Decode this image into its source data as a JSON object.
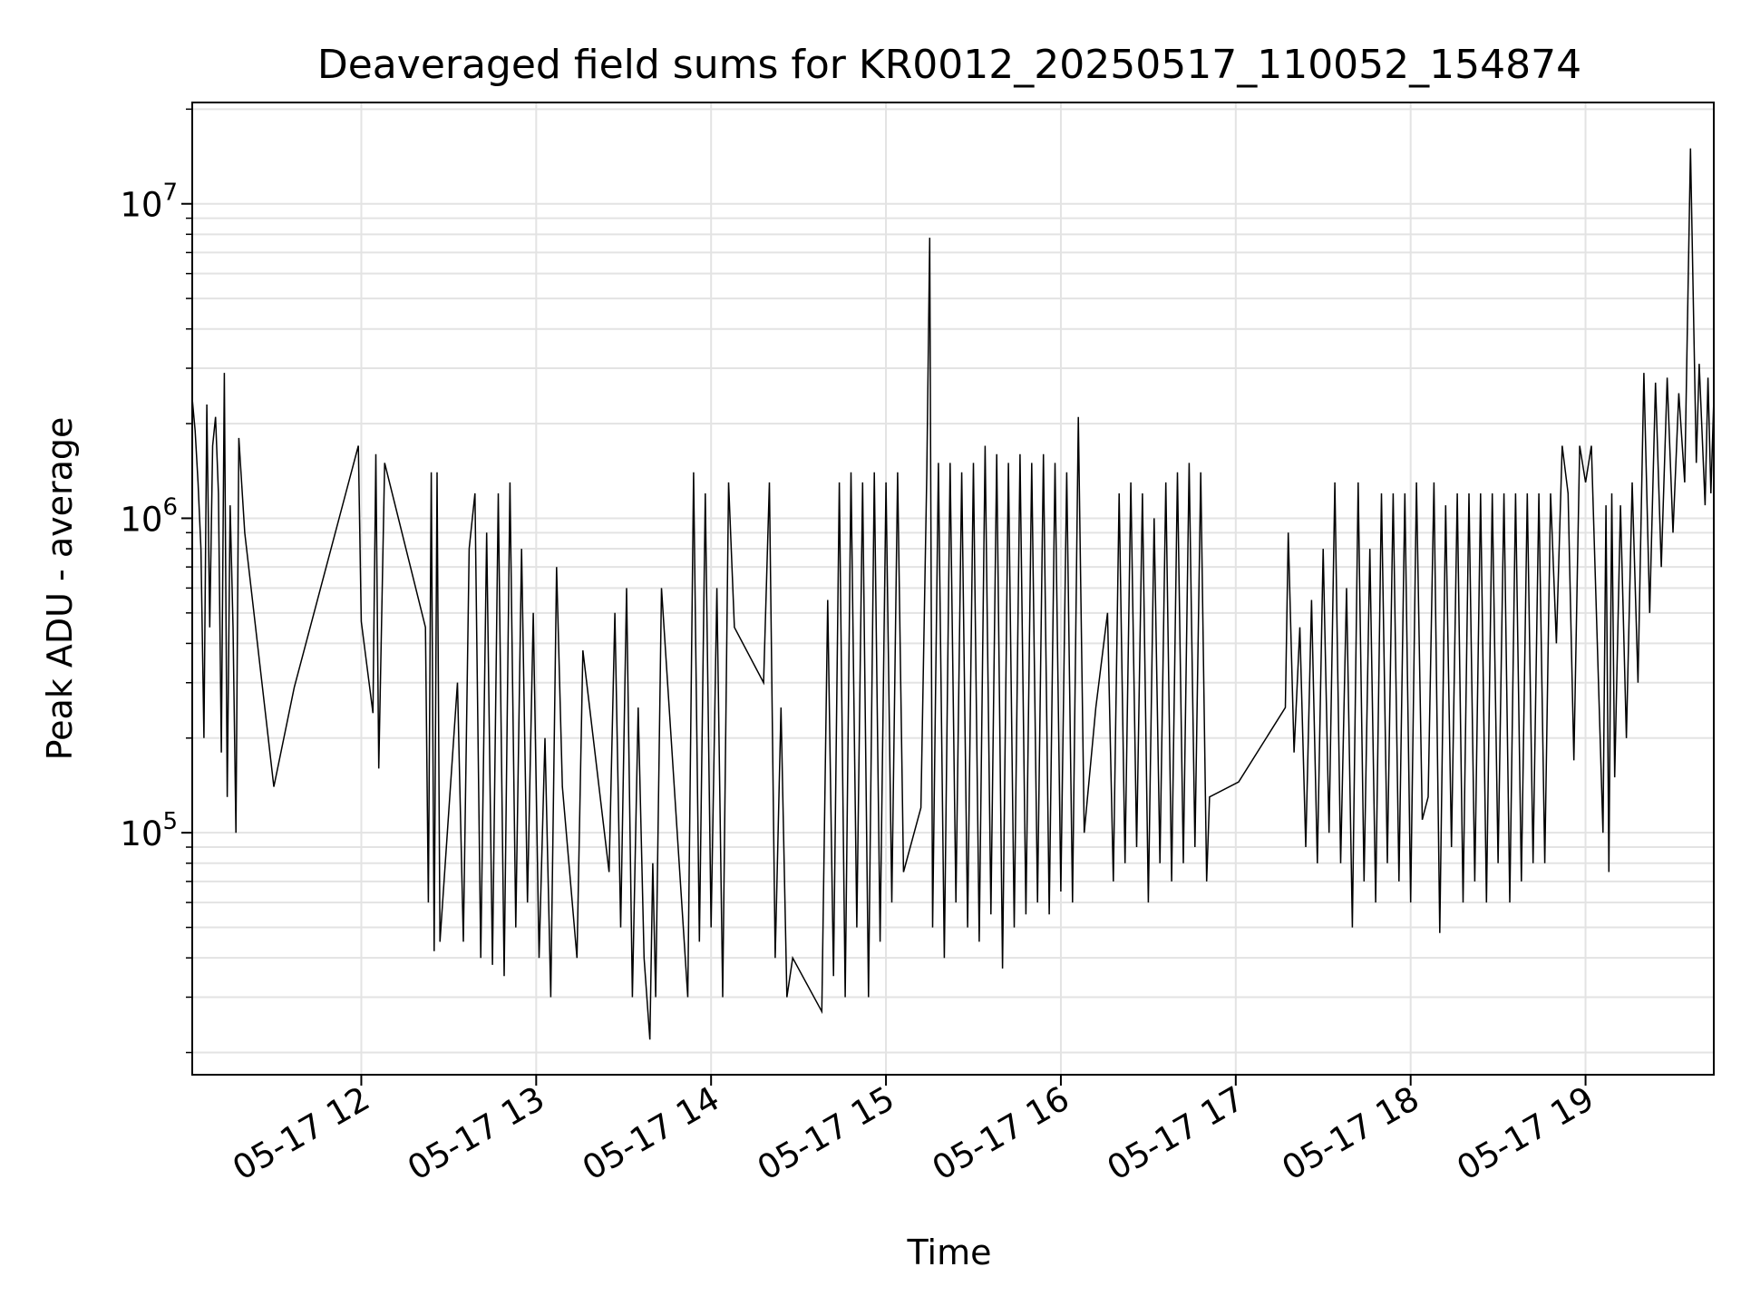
{
  "chart_data": {
    "type": "line",
    "title": "Deaveraged field sums for KR0012_20250517_110052_154874",
    "xlabel": "Time",
    "ylabel": "Peak ADU - average",
    "yscale": "log",
    "ylim": [
      17000,
      21000000
    ],
    "xlim": [
      "2025-05-17 11:02",
      "2025-05-17 19:44"
    ],
    "grid": true,
    "line_color": "#000000",
    "grid_color": "#e3e3e3",
    "x_ticks": [
      {
        "value": "2025-05-17 12:00",
        "label": "05-17 12"
      },
      {
        "value": "2025-05-17 13:00",
        "label": "05-17 13"
      },
      {
        "value": "2025-05-17 14:00",
        "label": "05-17 14"
      },
      {
        "value": "2025-05-17 15:00",
        "label": "05-17 15"
      },
      {
        "value": "2025-05-17 16:00",
        "label": "05-17 16"
      },
      {
        "value": "2025-05-17 17:00",
        "label": "05-17 17"
      },
      {
        "value": "2025-05-17 18:00",
        "label": "05-17 18"
      },
      {
        "value": "2025-05-17 19:00",
        "label": "05-17 19"
      }
    ],
    "y_ticks": [
      {
        "value": 100000,
        "base": "10",
        "exp": "5"
      },
      {
        "value": 1000000,
        "base": "10",
        "exp": "6"
      },
      {
        "value": 10000000,
        "base": "10",
        "exp": "7"
      }
    ],
    "series": [
      {
        "points": [
          [
            "2025-05-17 11:02",
            2400000
          ],
          [
            "2025-05-17 11:03",
            1900000
          ],
          [
            "2025-05-17 11:04",
            1300000
          ],
          [
            "2025-05-17 11:05",
            800000
          ],
          [
            "2025-05-17 11:06",
            200000
          ],
          [
            "2025-05-17 11:07",
            2300000
          ],
          [
            "2025-05-17 11:08",
            450000
          ],
          [
            "2025-05-17 11:09",
            1700000
          ],
          [
            "2025-05-17 11:10",
            2100000
          ],
          [
            "2025-05-17 11:11",
            1200000
          ],
          [
            "2025-05-17 11:12",
            180000
          ],
          [
            "2025-05-17 11:13",
            2900000
          ],
          [
            "2025-05-17 11:14",
            130000
          ],
          [
            "2025-05-17 11:15",
            1100000
          ],
          [
            "2025-05-17 11:16",
            450000
          ],
          [
            "2025-05-17 11:17",
            100000
          ],
          [
            "2025-05-17 11:18",
            1800000
          ],
          [
            "2025-05-17 11:20",
            900000
          ],
          [
            "2025-05-17 11:30",
            140000
          ],
          [
            "2025-05-17 11:37",
            290000
          ],
          [
            "2025-05-17 11:59",
            1700000
          ],
          [
            "2025-05-17 12:00",
            470000
          ],
          [
            "2025-05-17 12:04",
            240000
          ],
          [
            "2025-05-17 12:05",
            1600000
          ],
          [
            "2025-05-17 12:06",
            160000
          ],
          [
            "2025-05-17 12:08",
            1500000
          ],
          [
            "2025-05-17 12:22",
            450000
          ],
          [
            "2025-05-17 12:23",
            60000
          ],
          [
            "2025-05-17 12:24",
            1400000
          ],
          [
            "2025-05-17 12:25",
            42000
          ],
          [
            "2025-05-17 12:26",
            1400000
          ],
          [
            "2025-05-17 12:27",
            45000
          ],
          [
            "2025-05-17 12:33",
            300000
          ],
          [
            "2025-05-17 12:35",
            45000
          ],
          [
            "2025-05-17 12:37",
            800000
          ],
          [
            "2025-05-17 12:39",
            1200000
          ],
          [
            "2025-05-17 12:41",
            40000
          ],
          [
            "2025-05-17 12:43",
            900000
          ],
          [
            "2025-05-17 12:45",
            38000
          ],
          [
            "2025-05-17 12:47",
            1200000
          ],
          [
            "2025-05-17 12:49",
            35000
          ],
          [
            "2025-05-17 12:51",
            1300000
          ],
          [
            "2025-05-17 12:53",
            50000
          ],
          [
            "2025-05-17 12:55",
            800000
          ],
          [
            "2025-05-17 12:57",
            60000
          ],
          [
            "2025-05-17 12:59",
            500000
          ],
          [
            "2025-05-17 13:01",
            40000
          ],
          [
            "2025-05-17 13:03",
            200000
          ],
          [
            "2025-05-17 13:05",
            30000
          ],
          [
            "2025-05-17 13:07",
            700000
          ],
          [
            "2025-05-17 13:09",
            140000
          ],
          [
            "2025-05-17 13:14",
            40000
          ],
          [
            "2025-05-17 13:16",
            380000
          ],
          [
            "2025-05-17 13:25",
            75000
          ],
          [
            "2025-05-17 13:27",
            500000
          ],
          [
            "2025-05-17 13:29",
            50000
          ],
          [
            "2025-05-17 13:31",
            600000
          ],
          [
            "2025-05-17 13:33",
            30000
          ],
          [
            "2025-05-17 13:35",
            250000
          ],
          [
            "2025-05-17 13:37",
            40000
          ],
          [
            "2025-05-17 13:39",
            22000
          ],
          [
            "2025-05-17 13:40",
            80000
          ],
          [
            "2025-05-17 13:41",
            30000
          ],
          [
            "2025-05-17 13:43",
            600000
          ],
          [
            "2025-05-17 13:52",
            30000
          ],
          [
            "2025-05-17 13:54",
            1400000
          ],
          [
            "2025-05-17 13:56",
            45000
          ],
          [
            "2025-05-17 13:58",
            1200000
          ],
          [
            "2025-05-17 14:00",
            50000
          ],
          [
            "2025-05-17 14:02",
            600000
          ],
          [
            "2025-05-17 14:04",
            30000
          ],
          [
            "2025-05-17 14:06",
            1300000
          ],
          [
            "2025-05-17 14:08",
            450000
          ],
          [
            "2025-05-17 14:18",
            300000
          ],
          [
            "2025-05-17 14:20",
            1300000
          ],
          [
            "2025-05-17 14:22",
            40000
          ],
          [
            "2025-05-17 14:24",
            250000
          ],
          [
            "2025-05-17 14:26",
            30000
          ],
          [
            "2025-05-17 14:28",
            40000
          ],
          [
            "2025-05-17 14:38",
            27000
          ],
          [
            "2025-05-17 14:40",
            550000
          ],
          [
            "2025-05-17 14:42",
            35000
          ],
          [
            "2025-05-17 14:44",
            1300000
          ],
          [
            "2025-05-17 14:46",
            30000
          ],
          [
            "2025-05-17 14:48",
            1400000
          ],
          [
            "2025-05-17 14:50",
            50000
          ],
          [
            "2025-05-17 14:52",
            1300000
          ],
          [
            "2025-05-17 14:54",
            30000
          ],
          [
            "2025-05-17 14:56",
            1400000
          ],
          [
            "2025-05-17 14:58",
            45000
          ],
          [
            "2025-05-17 15:00",
            1300000
          ],
          [
            "2025-05-17 15:02",
            60000
          ],
          [
            "2025-05-17 15:04",
            1400000
          ],
          [
            "2025-05-17 15:06",
            75000
          ],
          [
            "2025-05-17 15:12",
            120000
          ],
          [
            "2025-05-17 15:14",
            1400000
          ],
          [
            "2025-05-17 15:15",
            7800000
          ],
          [
            "2025-05-17 15:16",
            50000
          ],
          [
            "2025-05-17 15:18",
            1500000
          ],
          [
            "2025-05-17 15:20",
            40000
          ],
          [
            "2025-05-17 15:22",
            1500000
          ],
          [
            "2025-05-17 15:24",
            60000
          ],
          [
            "2025-05-17 15:26",
            1400000
          ],
          [
            "2025-05-17 15:28",
            50000
          ],
          [
            "2025-05-17 15:30",
            1500000
          ],
          [
            "2025-05-17 15:32",
            45000
          ],
          [
            "2025-05-17 15:34",
            1700000
          ],
          [
            "2025-05-17 15:36",
            55000
          ],
          [
            "2025-05-17 15:38",
            1600000
          ],
          [
            "2025-05-17 15:40",
            37000
          ],
          [
            "2025-05-17 15:42",
            1500000
          ],
          [
            "2025-05-17 15:44",
            50000
          ],
          [
            "2025-05-17 15:46",
            1600000
          ],
          [
            "2025-05-17 15:48",
            55000
          ],
          [
            "2025-05-17 15:50",
            1500000
          ],
          [
            "2025-05-17 15:52",
            60000
          ],
          [
            "2025-05-17 15:54",
            1600000
          ],
          [
            "2025-05-17 15:56",
            55000
          ],
          [
            "2025-05-17 15:58",
            1500000
          ],
          [
            "2025-05-17 16:00",
            65000
          ],
          [
            "2025-05-17 16:02",
            1400000
          ],
          [
            "2025-05-17 16:04",
            60000
          ],
          [
            "2025-05-17 16:06",
            2100000
          ],
          [
            "2025-05-17 16:08",
            100000
          ],
          [
            "2025-05-17 16:12",
            250000
          ],
          [
            "2025-05-17 16:16",
            500000
          ],
          [
            "2025-05-17 16:18",
            70000
          ],
          [
            "2025-05-17 16:20",
            1200000
          ],
          [
            "2025-05-17 16:22",
            80000
          ],
          [
            "2025-05-17 16:24",
            1300000
          ],
          [
            "2025-05-17 16:26",
            90000
          ],
          [
            "2025-05-17 16:28",
            1200000
          ],
          [
            "2025-05-17 16:30",
            60000
          ],
          [
            "2025-05-17 16:32",
            1000000
          ],
          [
            "2025-05-17 16:34",
            80000
          ],
          [
            "2025-05-17 16:36",
            1300000
          ],
          [
            "2025-05-17 16:38",
            70000
          ],
          [
            "2025-05-17 16:40",
            1400000
          ],
          [
            "2025-05-17 16:42",
            80000
          ],
          [
            "2025-05-17 16:44",
            1500000
          ],
          [
            "2025-05-17 16:46",
            90000
          ],
          [
            "2025-05-17 16:48",
            1400000
          ],
          [
            "2025-05-17 16:50",
            70000
          ],
          [
            "2025-05-17 16:51",
            130000
          ],
          [
            "2025-05-17 17:01",
            145000
          ],
          [
            "2025-05-17 17:17",
            250000
          ],
          [
            "2025-05-17 17:18",
            900000
          ],
          [
            "2025-05-17 17:20",
            180000
          ],
          [
            "2025-05-17 17:22",
            450000
          ],
          [
            "2025-05-17 17:24",
            90000
          ],
          [
            "2025-05-17 17:26",
            550000
          ],
          [
            "2025-05-17 17:28",
            80000
          ],
          [
            "2025-05-17 17:30",
            800000
          ],
          [
            "2025-05-17 17:32",
            100000
          ],
          [
            "2025-05-17 17:34",
            1300000
          ],
          [
            "2025-05-17 17:36",
            80000
          ],
          [
            "2025-05-17 17:38",
            600000
          ],
          [
            "2025-05-17 17:40",
            50000
          ],
          [
            "2025-05-17 17:42",
            1300000
          ],
          [
            "2025-05-17 17:44",
            70000
          ],
          [
            "2025-05-17 17:46",
            800000
          ],
          [
            "2025-05-17 17:48",
            60000
          ],
          [
            "2025-05-17 17:50",
            1200000
          ],
          [
            "2025-05-17 17:52",
            80000
          ],
          [
            "2025-05-17 17:54",
            1200000
          ],
          [
            "2025-05-17 17:56",
            70000
          ],
          [
            "2025-05-17 17:58",
            1200000
          ],
          [
            "2025-05-17 18:00",
            60000
          ],
          [
            "2025-05-17 18:02",
            1300000
          ],
          [
            "2025-05-17 18:04",
            110000
          ],
          [
            "2025-05-17 18:06",
            130000
          ],
          [
            "2025-05-17 18:08",
            1300000
          ],
          [
            "2025-05-17 18:10",
            48000
          ],
          [
            "2025-05-17 18:12",
            1100000
          ],
          [
            "2025-05-17 18:14",
            90000
          ],
          [
            "2025-05-17 18:16",
            1200000
          ],
          [
            "2025-05-17 18:18",
            60000
          ],
          [
            "2025-05-17 18:20",
            1200000
          ],
          [
            "2025-05-17 18:22",
            70000
          ],
          [
            "2025-05-17 18:24",
            1200000
          ],
          [
            "2025-05-17 18:26",
            60000
          ],
          [
            "2025-05-17 18:28",
            1200000
          ],
          [
            "2025-05-17 18:30",
            80000
          ],
          [
            "2025-05-17 18:32",
            1200000
          ],
          [
            "2025-05-17 18:34",
            60000
          ],
          [
            "2025-05-17 18:36",
            1200000
          ],
          [
            "2025-05-17 18:38",
            70000
          ],
          [
            "2025-05-17 18:40",
            1200000
          ],
          [
            "2025-05-17 18:42",
            80000
          ],
          [
            "2025-05-17 18:44",
            1200000
          ],
          [
            "2025-05-17 18:46",
            80000
          ],
          [
            "2025-05-17 18:48",
            1200000
          ],
          [
            "2025-05-17 18:50",
            400000
          ],
          [
            "2025-05-17 18:52",
            1700000
          ],
          [
            "2025-05-17 18:54",
            1200000
          ],
          [
            "2025-05-17 18:56",
            170000
          ],
          [
            "2025-05-17 18:58",
            1700000
          ],
          [
            "2025-05-17 19:00",
            1300000
          ],
          [
            "2025-05-17 19:02",
            1700000
          ],
          [
            "2025-05-17 19:06",
            100000
          ],
          [
            "2025-05-17 19:07",
            1100000
          ],
          [
            "2025-05-17 19:08",
            75000
          ],
          [
            "2025-05-17 19:09",
            1200000
          ],
          [
            "2025-05-17 19:10",
            150000
          ],
          [
            "2025-05-17 19:12",
            1100000
          ],
          [
            "2025-05-17 19:14",
            200000
          ],
          [
            "2025-05-17 19:16",
            1300000
          ],
          [
            "2025-05-17 19:18",
            300000
          ],
          [
            "2025-05-17 19:20",
            2900000
          ],
          [
            "2025-05-17 19:22",
            500000
          ],
          [
            "2025-05-17 19:24",
            2700000
          ],
          [
            "2025-05-17 19:26",
            700000
          ],
          [
            "2025-05-17 19:28",
            2800000
          ],
          [
            "2025-05-17 19:30",
            900000
          ],
          [
            "2025-05-17 19:32",
            2500000
          ],
          [
            "2025-05-17 19:34",
            1300000
          ],
          [
            "2025-05-17 19:36",
            15000000
          ],
          [
            "2025-05-17 19:38",
            1500000
          ],
          [
            "2025-05-17 19:39",
            3100000
          ],
          [
            "2025-05-17 19:41",
            1100000
          ],
          [
            "2025-05-17 19:42",
            2800000
          ],
          [
            "2025-05-17 19:43",
            1200000
          ],
          [
            "2025-05-17 19:44",
            2400000
          ]
        ]
      }
    ]
  }
}
